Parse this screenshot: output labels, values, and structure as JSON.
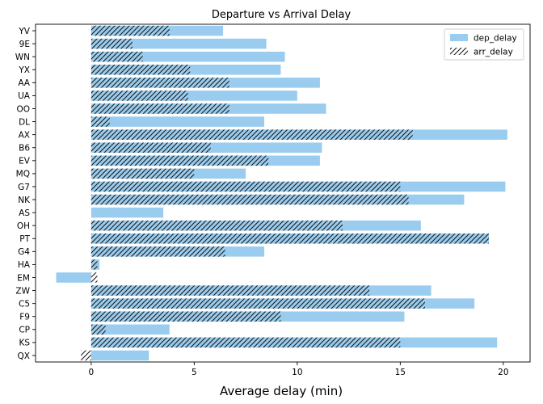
{
  "chart_data": {
    "type": "bar",
    "orientation": "horizontal",
    "title": "Departure vs Arrival Delay",
    "xlabel": "Average delay (min)",
    "ylabel": "",
    "xlim": [
      -2.7,
      21.3
    ],
    "xticks": [
      0,
      5,
      10,
      15,
      20
    ],
    "grid": false,
    "legend_position": "top-right",
    "categories": [
      "YV",
      "9E",
      "WN",
      "YX",
      "AA",
      "UA",
      "OO",
      "DL",
      "AX",
      "B6",
      "EV",
      "MQ",
      "G7",
      "NK",
      "AS",
      "OH",
      "PT",
      "G4",
      "HA",
      "EM",
      "ZW",
      "C5",
      "F9",
      "CP",
      "KS",
      "QX"
    ],
    "series": [
      {
        "name": "dep_delay",
        "style": "fill",
        "color": "#99CCEE",
        "values": [
          6.4,
          8.5,
          9.4,
          9.2,
          11.1,
          10.0,
          11.4,
          8.4,
          20.2,
          11.2,
          11.1,
          7.5,
          20.1,
          18.1,
          3.5,
          16.0,
          19.3,
          8.4,
          0.4,
          -1.7,
          16.5,
          18.6,
          15.2,
          3.8,
          19.7,
          2.8
        ]
      },
      {
        "name": "arr_delay",
        "style": "hatch",
        "color": "#1A1A1A",
        "values": [
          3.8,
          2.0,
          2.5,
          4.8,
          6.7,
          4.7,
          6.7,
          0.9,
          15.6,
          5.8,
          8.6,
          5.0,
          15.0,
          15.4,
          0.0,
          12.2,
          19.3,
          6.5,
          0.3,
          0.3,
          13.5,
          16.2,
          9.2,
          0.7,
          15.0,
          -0.5
        ]
      }
    ]
  }
}
